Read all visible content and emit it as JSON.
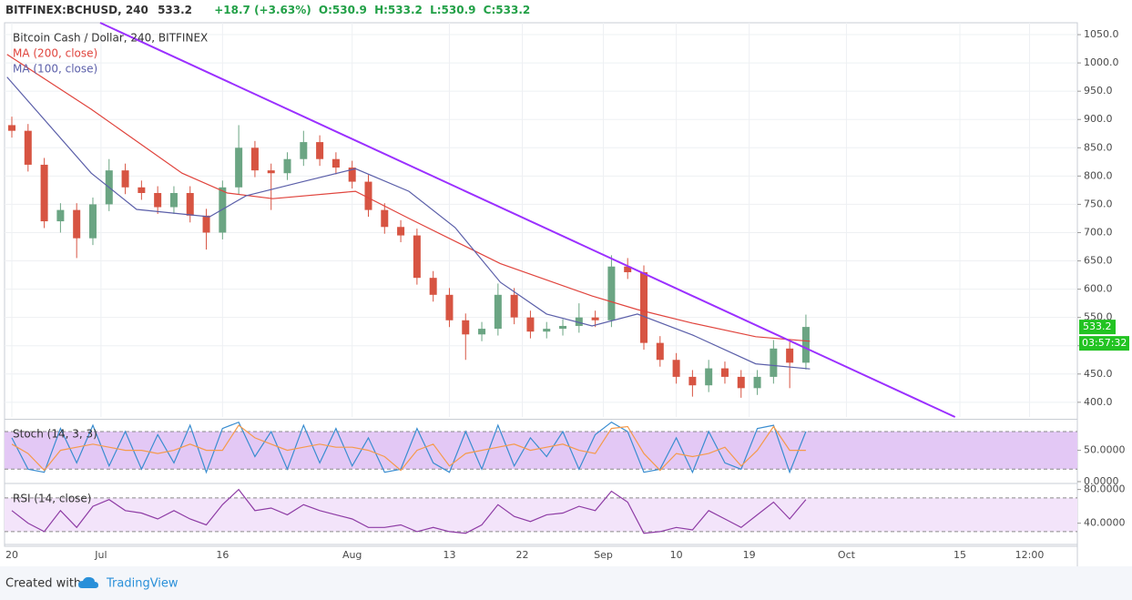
{
  "chart_data": {
    "type": "candlestick",
    "title": "Bitcoin Cash / Dollar, 240, BITFINEX",
    "header": {
      "symbol": "BITFINEX:BCHUSD, 240",
      "last": "533.2",
      "change": "+18.7 (+3.63%)",
      "open": "O:530.9",
      "high": "H:533.2",
      "low": "L:530.9",
      "close": "C:533.2"
    },
    "up_color": "#6ba583",
    "down_color": "#d75442",
    "x": [
      0,
      2,
      4,
      6,
      8,
      10,
      12,
      14,
      16,
      18,
      20,
      22,
      24,
      26,
      28,
      30,
      32,
      34,
      36,
      38,
      40,
      42,
      44,
      46,
      48,
      50,
      52,
      54,
      56,
      58,
      60,
      62,
      64,
      66,
      68,
      70,
      72,
      74,
      76,
      78,
      80,
      82,
      84,
      86,
      88,
      90,
      92,
      94,
      96,
      98
    ],
    "open": [
      890,
      880,
      820,
      720,
      740,
      690,
      750,
      810,
      780,
      770,
      745,
      770,
      730,
      700,
      780,
      850,
      810,
      805,
      830,
      860,
      830,
      815,
      790,
      740,
      710,
      695,
      620,
      590,
      545,
      520,
      530,
      590,
      550,
      525,
      530,
      535,
      550,
      545,
      640,
      630,
      505,
      475,
      445,
      430,
      460,
      445,
      425,
      445,
      495,
      470
    ],
    "high": [
      905,
      892,
      832,
      752,
      752,
      762,
      830,
      822,
      792,
      782,
      782,
      782,
      742,
      792,
      890,
      862,
      822,
      842,
      880,
      872,
      842,
      827,
      802,
      752,
      722,
      707,
      632,
      602,
      557,
      542,
      610,
      602,
      562,
      542,
      547,
      575,
      562,
      660,
      655,
      642,
      517,
      487,
      457,
      475,
      472,
      457,
      457,
      510,
      507,
      555
    ],
    "low": [
      868,
      808,
      708,
      700,
      655,
      678,
      738,
      768,
      758,
      733,
      733,
      718,
      670,
      688,
      768,
      798,
      740,
      793,
      818,
      818,
      803,
      778,
      728,
      698,
      683,
      608,
      578,
      533,
      475,
      508,
      518,
      538,
      513,
      513,
      518,
      523,
      533,
      533,
      618,
      493,
      463,
      433,
      410,
      418,
      433,
      408,
      413,
      433,
      425,
      458
    ],
    "close": [
      880,
      820,
      720,
      740,
      690,
      750,
      810,
      780,
      770,
      745,
      770,
      730,
      700,
      780,
      850,
      810,
      805,
      830,
      860,
      830,
      815,
      790,
      740,
      710,
      695,
      620,
      590,
      545,
      520,
      530,
      590,
      550,
      525,
      530,
      535,
      550,
      545,
      640,
      630,
      505,
      475,
      445,
      430,
      460,
      445,
      425,
      445,
      495,
      470,
      533.2
    ],
    "xlim": [
      -0.9,
      131.5
    ],
    "xticks": [
      {
        "value": 0,
        "label": "20"
      },
      {
        "value": 11,
        "label": "Jul"
      },
      {
        "value": 26,
        "label": "16"
      },
      {
        "value": 42,
        "label": "Aug"
      },
      {
        "value": 54,
        "label": "13"
      },
      {
        "value": 63,
        "label": "22"
      },
      {
        "value": 73,
        "label": "Sep"
      },
      {
        "value": 82,
        "label": "10"
      },
      {
        "value": 91,
        "label": "19"
      },
      {
        "value": 103,
        "label": "Oct"
      },
      {
        "value": 117,
        "label": "15"
      },
      {
        "value": 125.6,
        "label": "12:00"
      }
    ],
    "ylim": [
      374,
      1071
    ],
    "yticks": [
      {
        "value": 400,
        "label": "400.0"
      },
      {
        "value": 450,
        "label": "450.0"
      },
      {
        "value": 500,
        "label": "500.0"
      },
      {
        "value": 550,
        "label": "550.0"
      },
      {
        "value": 600,
        "label": "600.0"
      },
      {
        "value": 650,
        "label": "650.0"
      },
      {
        "value": 700,
        "label": "700.0"
      },
      {
        "value": 750,
        "label": "750.0"
      },
      {
        "value": 800,
        "label": "800.0"
      },
      {
        "value": 850,
        "label": "850.0"
      },
      {
        "value": 900,
        "label": "900.0"
      },
      {
        "value": 950,
        "label": "950.0"
      },
      {
        "value": 1000,
        "label": "1000.0"
      },
      {
        "value": 1050,
        "label": "1050.0"
      }
    ],
    "grid": true,
    "moving_averages": [
      {
        "name": "MA (200, close)",
        "color": "#e0443d",
        "x": [
          -0.6,
          9.8,
          21,
          26.6,
          32.2,
          42.4,
          49,
          60.3,
          71.6,
          77.2,
          84,
          91.8,
          98.5
        ],
        "values": [
          1015,
          918,
          805,
          770,
          760,
          773,
          725,
          645,
          588,
          564,
          540,
          516,
          508
        ]
      },
      {
        "name": "MA (100, close)",
        "color": "#5b5fa9",
        "x": [
          -0.6,
          9.8,
          15.4,
          24.4,
          28.9,
          35.6,
          42.4,
          49,
          54.7,
          60.3,
          66,
          71.6,
          77.2,
          84,
          91.8,
          98.5
        ],
        "values": [
          975,
          805,
          741,
          728,
          765,
          789,
          813,
          773,
          709,
          612,
          556,
          535,
          556,
          519,
          468,
          459
        ]
      }
    ],
    "trendline": {
      "color": "#9b30ff",
      "x": [
        10.9,
        116.4
      ],
      "values": [
        1071,
        374
      ]
    },
    "price_tag": "533.2",
    "countdown": "03:57:32",
    "tag_color": "#22c322",
    "stoch": {
      "title": "Stoch (14, 3, 3)",
      "ylim": [
        0,
        96
      ],
      "yticks": [
        {
          "value": 50,
          "label": "50.0000"
        },
        {
          "value": 0,
          "label": "0.0000"
        }
      ],
      "bands": [
        20,
        80
      ],
      "band_color": "#e3c8f5",
      "series": [
        {
          "color": "#3a8dd0",
          "values": [
            70,
            20,
            15,
            85,
            30,
            90,
            25,
            80,
            20,
            75,
            30,
            90,
            15,
            85,
            95,
            40,
            80,
            20,
            90,
            30,
            85,
            25,
            70,
            15,
            20,
            85,
            30,
            15,
            80,
            20,
            90,
            25,
            70,
            40,
            80,
            20,
            75,
            95,
            80,
            15,
            20,
            70,
            15,
            80,
            30,
            20,
            85,
            90,
            15,
            80
          ]
        },
        {
          "color": "#f59a4b",
          "values": [
            60,
            45,
            18,
            50,
            55,
            60,
            55,
            50,
            50,
            45,
            50,
            60,
            50,
            50,
            90,
            70,
            60,
            50,
            55,
            60,
            55,
            55,
            50,
            40,
            18,
            50,
            60,
            25,
            45,
            50,
            55,
            60,
            50,
            55,
            60,
            50,
            45,
            85,
            88,
            45,
            18,
            45,
            40,
            45,
            55,
            25,
            50,
            88,
            50,
            50
          ]
        }
      ]
    },
    "rsi": {
      "title": "RSI (14, close)",
      "ylim": [
        18,
        85
      ],
      "yticks": [
        {
          "value": 80,
          "label": "80.0000"
        },
        {
          "value": 40,
          "label": "40.0000"
        }
      ],
      "bands": [
        30,
        70
      ],
      "band_color": "#f3e4fa",
      "color": "#8e3ca5",
      "values": [
        55,
        40,
        30,
        55,
        35,
        60,
        68,
        55,
        52,
        45,
        55,
        45,
        38,
        62,
        80,
        55,
        58,
        50,
        62,
        55,
        50,
        45,
        35,
        35,
        38,
        30,
        35,
        30,
        28,
        38,
        62,
        48,
        42,
        50,
        52,
        60,
        55,
        78,
        65,
        28,
        30,
        35,
        32,
        55,
        45,
        35,
        50,
        65,
        45,
        68
      ]
    }
  },
  "footer": {
    "created": "Created with",
    "brand": "TradingView"
  }
}
